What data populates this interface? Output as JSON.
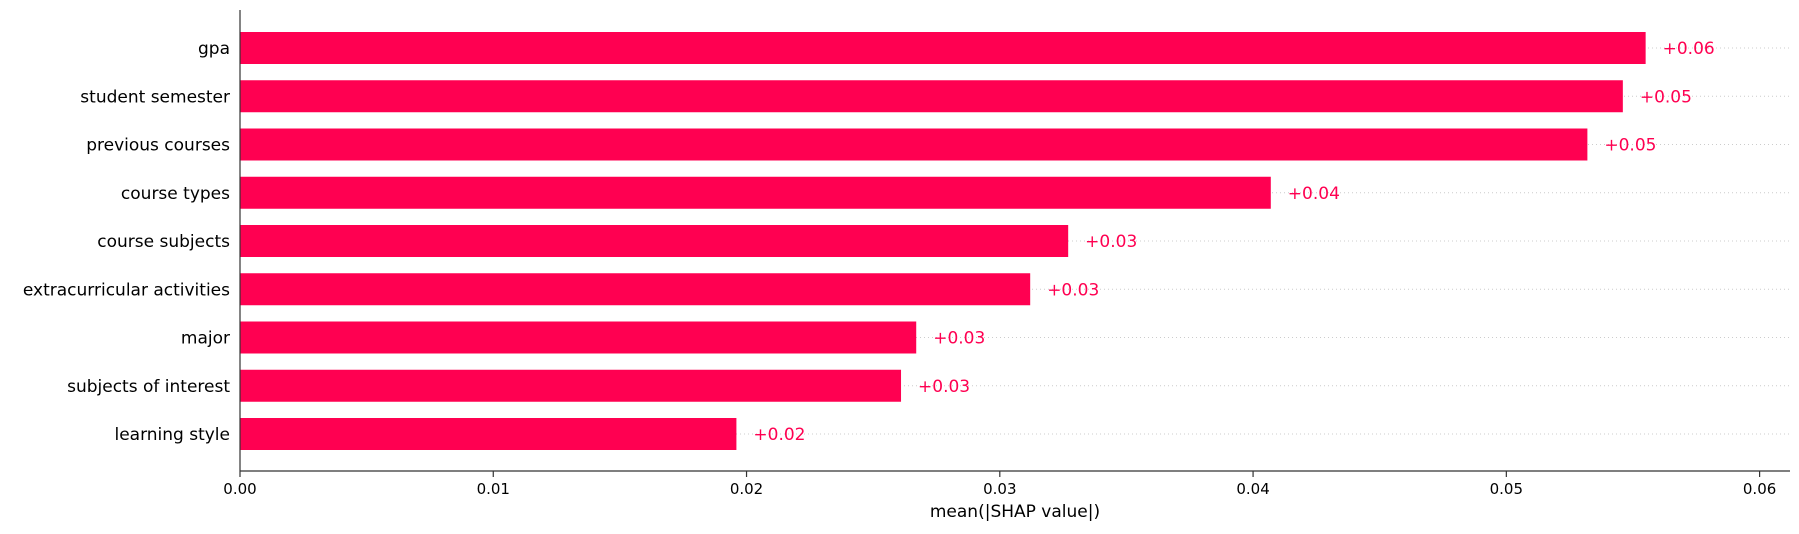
{
  "chart_data": {
    "type": "bar",
    "orientation": "horizontal",
    "categories": [
      "gpa",
      "student semester",
      "previous courses",
      "course types",
      "course subjects",
      "extracurricular activities",
      "major",
      "subjects of interest",
      "learning style"
    ],
    "values": [
      0.0555,
      0.0546,
      0.0532,
      0.0407,
      0.0327,
      0.0312,
      0.0267,
      0.0261,
      0.0196
    ],
    "value_labels": [
      "+0.06",
      "+0.05",
      "+0.05",
      "+0.04",
      "+0.03",
      "+0.03",
      "+0.03",
      "+0.03",
      "+0.02"
    ],
    "title": "",
    "xlabel": "mean(|SHAP value|)",
    "ylabel": "",
    "xlim": [
      0,
      0.0612
    ],
    "xticks": [
      0,
      0.01,
      0.02,
      0.03,
      0.04,
      0.05,
      0.06
    ],
    "xtick_labels": [
      "0.00",
      "0.01",
      "0.02",
      "0.03",
      "0.04",
      "0.05",
      "0.06"
    ],
    "grid": "horizontal dotted row guides",
    "legend": "none",
    "colors": {
      "bar": "#ff0051",
      "value_label": "#ff0051",
      "text": "#000000",
      "axis": "#333333",
      "grid": "#cccccc"
    }
  }
}
